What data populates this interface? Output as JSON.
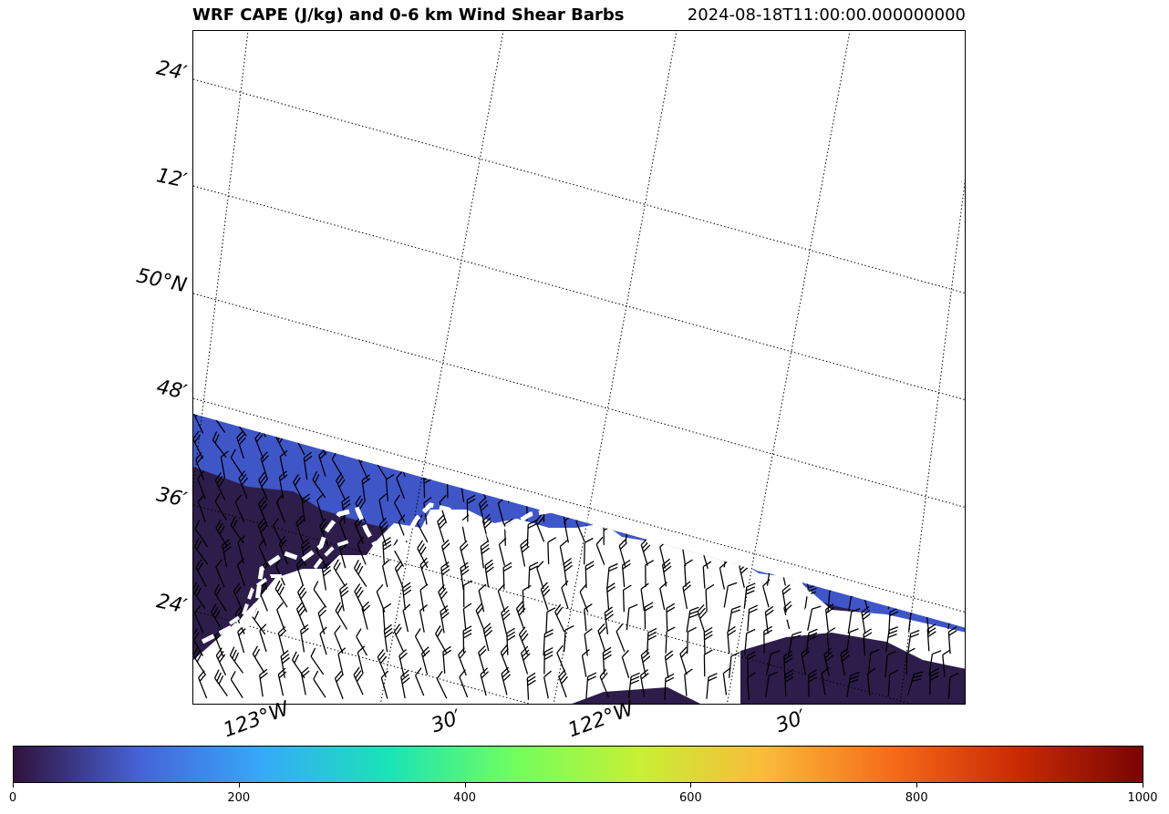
{
  "title": {
    "main": "WRF CAPE (J/kg) and 0-6 km Wind Shear Barbs",
    "time": "2024-08-18T11:00:00.000000000"
  },
  "map": {
    "lat_labels": [
      "24′",
      "12′",
      "50°N",
      "48′",
      "36′",
      "24′"
    ],
    "lon_labels": [
      "123°W",
      "30′",
      "122°W",
      "30′"
    ],
    "field": "CAPE",
    "overlay": "0-6 km wind shear barbs",
    "contour_style": "white dashed",
    "colors": {
      "low_cape": "#2d1d4a",
      "cape_band": "#3f56c9",
      "land_mask": "#ffffff",
      "barb": "#000000",
      "gridline": "#000000"
    }
  },
  "colorbar": {
    "colormap": "turbo",
    "ticks": [
      "0",
      "200",
      "400",
      "600",
      "800",
      "1000"
    ],
    "range": [
      0,
      1000
    ],
    "stops": [
      "#30123b",
      "#4662d7",
      "#36aaf9",
      "#1ae4b6",
      "#72fe5e",
      "#c8ef34",
      "#faba39",
      "#f66b19",
      "#ca2a04",
      "#7a0403"
    ]
  }
}
